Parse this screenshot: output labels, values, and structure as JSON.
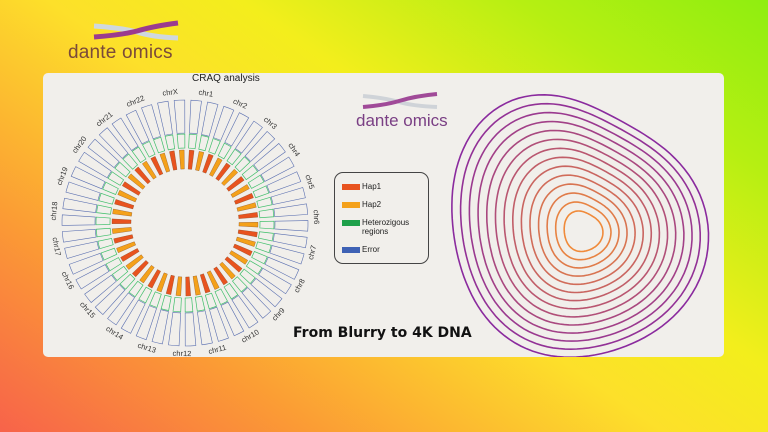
{
  "logo": {
    "text": "dante omics"
  },
  "panel": {
    "chart_title": "CRAQ analysis",
    "logo_text": "dante omics",
    "chromosomes": [
      "chrX",
      "chr1",
      "chr2",
      "chr3",
      "chr4",
      "chr5",
      "chr6",
      "chr7",
      "chr8",
      "chr9",
      "chr10",
      "chr11",
      "chr12",
      "chr13",
      "chr14",
      "chr15",
      "chr16",
      "chr17",
      "chr18",
      "chr19",
      "chr20",
      "chr21",
      "chr22"
    ],
    "legend": [
      {
        "label": "Hap1",
        "color": "#e8531f"
      },
      {
        "label": "Hap2",
        "color": "#f4a11a"
      },
      {
        "label": "Heterozigous regions",
        "color": "#1ea04a"
      },
      {
        "label": "Error",
        "color": "#3f62b5"
      }
    ],
    "headline": "From Blurry to 4K DNA"
  },
  "colors": {
    "contour_outer": "#8a2a9e",
    "contour_inner": "#f08a3a",
    "box": "#5a6fb0",
    "green": "#3fbf6a"
  }
}
